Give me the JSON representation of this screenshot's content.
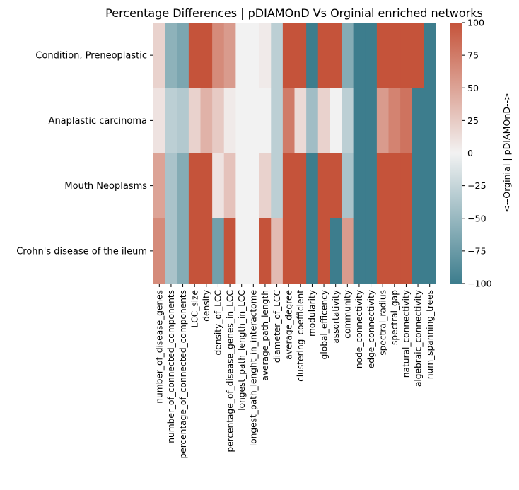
{
  "chart_data": {
    "type": "heatmap",
    "title": "Percentage Differences | pDIAMOnD Vs Orginial enriched networks",
    "rows": [
      "Condition, Preneoplastic",
      "Anaplastic carcinoma",
      "Mouth Neoplasms",
      "Crohn's disease of the ileum"
    ],
    "columns": [
      "number_of_disease_genes",
      "number_of_connected_components",
      "percentage_of_connected_components",
      "LCC_size",
      "density",
      "density_of_LCC",
      "percentage_of_disease_genes_in_LCC",
      "longest_path_length_in_LCC",
      "longest_path_lenght_in_interactome",
      "average_path_length",
      "diameter_of_LCC",
      "average_degree",
      "clustering_coefficient",
      "modularity",
      "global_efficency",
      "assortativity",
      "community",
      "node_connectivity",
      "edge_connectivity",
      "spectral_radius",
      "spectral_gap",
      "natural_connectivity",
      "algebraic_connectivity",
      "num_spanning_trees"
    ],
    "values": [
      [
        20,
        -55,
        -65,
        100,
        100,
        65,
        55,
        0,
        0,
        5,
        -30,
        100,
        100,
        -100,
        100,
        100,
        -60,
        -100,
        -100,
        100,
        100,
        100,
        100,
        -100
      ],
      [
        10,
        -30,
        -35,
        20,
        40,
        25,
        5,
        0,
        0,
        0,
        -30,
        75,
        15,
        -45,
        20,
        0,
        -30,
        -100,
        -100,
        55,
        70,
        80,
        -100,
        -100
      ],
      [
        50,
        -40,
        -60,
        100,
        100,
        10,
        30,
        0,
        0,
        20,
        -30,
        100,
        100,
        -100,
        100,
        100,
        -40,
        -100,
        -100,
        100,
        100,
        100,
        -100,
        -100
      ],
      [
        65,
        -40,
        -60,
        100,
        100,
        -70,
        100,
        0,
        0,
        100,
        35,
        100,
        100,
        -100,
        100,
        -100,
        55,
        -100,
        -100,
        100,
        100,
        100,
        -100,
        -100
      ]
    ],
    "colorbar": {
      "min": -100,
      "max": 100,
      "ticks": [
        100,
        75,
        50,
        25,
        0,
        -25,
        -50,
        -75,
        -100
      ],
      "label": "<--Orginial  |  pDIAMOnD-->",
      "low_color": "#3d7d8d",
      "mid_color": "#f2f2f2",
      "high_color": "#c5533a"
    }
  }
}
